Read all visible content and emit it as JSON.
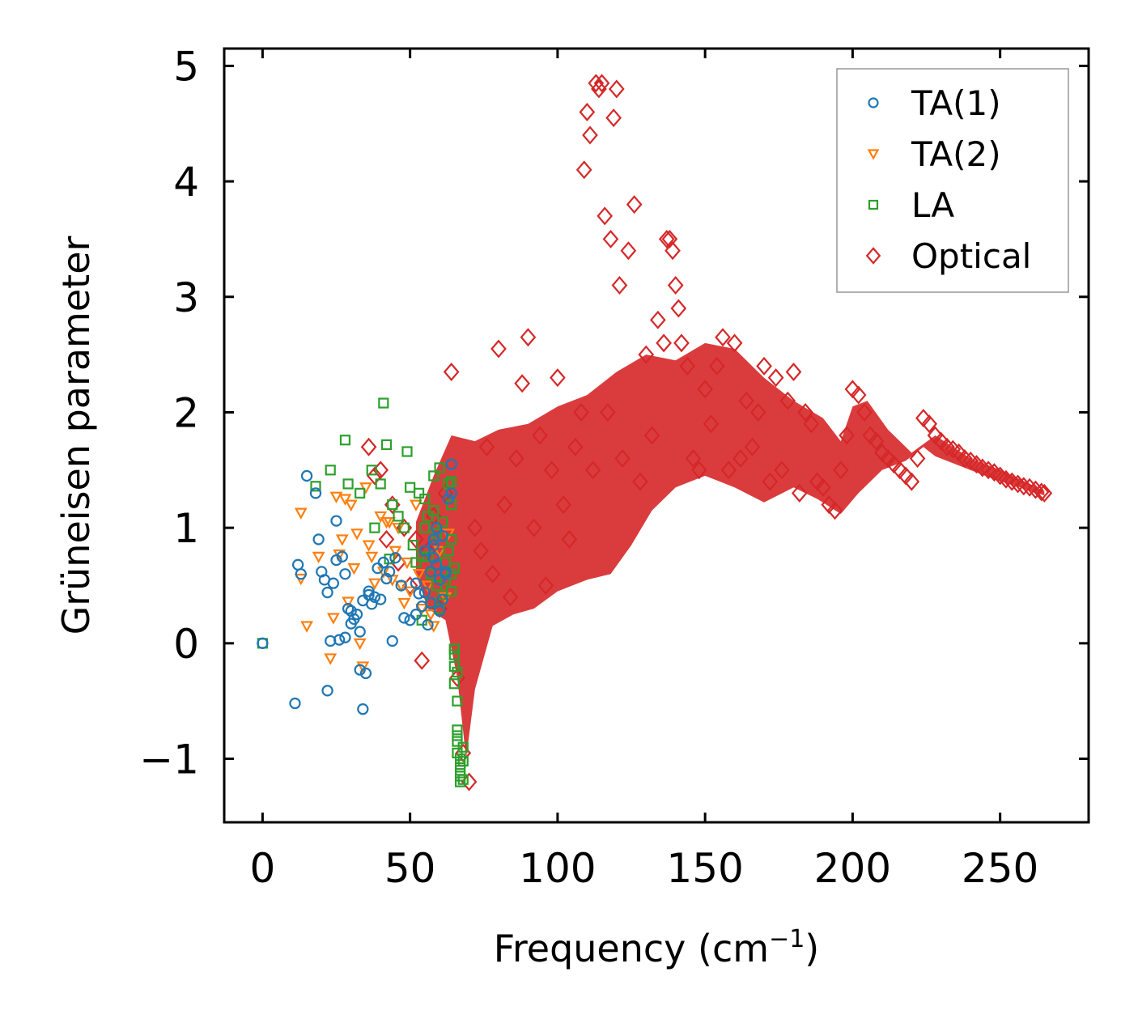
{
  "chart_data": {
    "type": "scatter",
    "xlabel": "Frequency (cm",
    "xlabel_sup": "−1",
    "xlabel_close": ")",
    "ylabel": "Grüneisen parameter",
    "xlim": [
      -13,
      280
    ],
    "ylim": [
      -1.55,
      5.15
    ],
    "xticks": [
      0,
      50,
      100,
      150,
      200,
      250
    ],
    "xtick_labels": [
      "0",
      "50",
      "100",
      "150",
      "200",
      "250"
    ],
    "yticks": [
      -1,
      0,
      1,
      2,
      3,
      4,
      5
    ],
    "ytick_labels": [
      "−1",
      "0",
      "1",
      "2",
      "3",
      "4",
      "5"
    ],
    "legend_position": "top-right",
    "series": [
      {
        "name": "TA(1)",
        "marker": "circle",
        "color": "#1f77b4",
        "x": [
          0,
          11,
          12,
          13,
          15,
          18,
          19,
          20,
          21,
          22,
          23,
          24,
          25,
          26,
          27,
          28,
          29,
          30,
          31,
          32,
          33,
          34,
          34,
          35,
          36,
          37,
          38,
          40,
          42,
          43,
          44,
          45,
          47,
          48,
          50,
          52,
          53,
          55,
          57,
          58,
          59,
          60,
          61,
          62,
          63,
          64,
          56,
          58,
          54,
          60,
          57,
          59,
          41,
          39,
          36,
          33,
          30,
          28,
          25,
          22,
          52,
          55,
          61,
          62,
          64,
          58
        ],
        "y": [
          0.0,
          -0.52,
          0.68,
          0.6,
          1.45,
          1.3,
          0.9,
          0.62,
          0.55,
          0.44,
          0.02,
          0.52,
          1.06,
          0.03,
          0.75,
          0.6,
          0.3,
          0.17,
          0.21,
          0.25,
          -0.23,
          0.37,
          -0.57,
          -0.26,
          0.42,
          0.34,
          0.4,
          0.38,
          0.56,
          0.62,
          0.02,
          0.74,
          0.5,
          0.22,
          0.2,
          0.52,
          0.43,
          0.8,
          0.62,
          0.74,
          1.0,
          0.55,
          0.38,
          0.6,
          1.25,
          1.55,
          0.16,
          0.9,
          0.32,
          0.28,
          0.35,
          0.68,
          0.7,
          0.65,
          0.45,
          0.1,
          0.28,
          0.05,
          0.72,
          -0.41,
          0.25,
          0.44,
          0.93,
          0.62,
          1.3,
          0.85
        ]
      },
      {
        "name": "TA(2)",
        "marker": "triangle-down",
        "color": "#ff7f0e",
        "x": [
          13,
          13,
          15,
          19,
          23,
          25,
          26,
          28,
          29,
          30,
          32,
          33,
          35,
          36,
          37,
          38,
          40,
          41,
          42,
          44,
          45,
          46,
          47,
          49,
          50,
          52,
          54,
          56,
          58,
          60,
          62,
          63,
          34,
          31,
          24,
          27,
          43,
          48,
          53,
          57
        ],
        "y": [
          1.13,
          0.56,
          0.15,
          0.75,
          -0.13,
          1.27,
          0.77,
          1.25,
          0.36,
          1.2,
          0.95,
          0.0,
          1.35,
          0.85,
          0.75,
          0.52,
          1.1,
          0.62,
          1.05,
          0.55,
          0.8,
          1.0,
          0.5,
          0.7,
          0.45,
          1.2,
          0.3,
          0.5,
          0.15,
          0.8,
          0.4,
          0.95,
          -0.2,
          0.65,
          0.22,
          0.9,
          1.05,
          0.35,
          0.6,
          0.25
        ]
      },
      {
        "name": "LA",
        "marker": "square",
        "color": "#2ca02c",
        "x": [
          0,
          18,
          23,
          28,
          29,
          33,
          37,
          38,
          40,
          41,
          42,
          43,
          44,
          46,
          48,
          49,
          50,
          51,
          52,
          53,
          54,
          55,
          56,
          57,
          58,
          59,
          60,
          61,
          62,
          63,
          64,
          64,
          64,
          65,
          65,
          65,
          65,
          66,
          66,
          66,
          66,
          67,
          67,
          67,
          67,
          68,
          68,
          68,
          64,
          65,
          66,
          63,
          62,
          61,
          60,
          59,
          58,
          57,
          56,
          55,
          54,
          66,
          67,
          65,
          64
        ],
        "y": [
          0.0,
          1.36,
          1.5,
          1.76,
          1.38,
          1.3,
          1.5,
          1.0,
          1.38,
          2.08,
          1.72,
          0.73,
          1.2,
          1.1,
          1.0,
          1.66,
          1.35,
          0.85,
          0.7,
          1.3,
          0.75,
          1.25,
          1.1,
          0.6,
          1.45,
          0.95,
          1.52,
          0.42,
          0.7,
          1.38,
          1.2,
          0.9,
          0.6,
          -0.05,
          -0.1,
          -0.2,
          -0.35,
          -0.5,
          -0.8,
          -0.85,
          -0.95,
          -1.0,
          -1.05,
          -1.1,
          -1.15,
          -1.18,
          -1.02,
          -0.9,
          1.4,
          0.65,
          -0.25,
          0.8,
          0.55,
          1.05,
          0.3,
          0.5,
          1.15,
          0.35,
          0.75,
          1.0,
          0.2,
          -0.75,
          -1.2,
          -0.05,
          0.45
        ]
      },
      {
        "name": "Optical",
        "marker": "diamond",
        "color": "#d62728",
        "x": [
          36,
          38,
          40,
          42,
          44,
          46,
          48,
          50,
          52,
          54,
          56,
          58,
          60,
          62,
          64,
          66,
          68,
          70,
          72,
          74,
          76,
          78,
          80,
          82,
          84,
          86,
          88,
          90,
          92,
          94,
          96,
          98,
          100,
          102,
          104,
          106,
          108,
          109,
          110,
          111,
          112,
          113,
          114,
          115,
          116,
          117,
          118,
          119,
          120,
          121,
          122,
          124,
          126,
          128,
          130,
          132,
          134,
          136,
          137,
          138,
          139,
          140,
          141,
          142,
          144,
          146,
          148,
          150,
          152,
          154,
          156,
          158,
          160,
          162,
          164,
          166,
          168,
          170,
          172,
          174,
          176,
          178,
          180,
          182,
          184,
          186,
          188,
          190,
          192,
          194,
          196,
          198,
          200,
          202,
          204,
          206,
          208,
          210,
          212,
          214,
          216,
          218,
          220,
          222,
          224,
          226,
          228,
          230,
          232,
          234,
          236,
          238,
          240,
          242,
          244,
          246,
          248,
          250,
          252,
          254,
          256,
          258,
          260,
          262,
          264,
          265
        ],
        "y": [
          1.7,
          1.45,
          1.5,
          0.9,
          1.2,
          0.7,
          1.0,
          0.5,
          0.9,
          -0.15,
          0.8,
          1.1,
          0.3,
          1.3,
          2.35,
          -0.3,
          -0.95,
          -1.2,
          1.0,
          0.8,
          1.7,
          0.6,
          2.55,
          1.2,
          0.4,
          1.6,
          2.25,
          2.65,
          1.0,
          1.8,
          0.5,
          1.5,
          2.3,
          1.2,
          0.9,
          1.7,
          2.0,
          4.1,
          4.6,
          4.4,
          1.5,
          4.85,
          4.8,
          4.85,
          3.7,
          2.0,
          3.5,
          4.55,
          4.8,
          3.1,
          1.6,
          3.4,
          3.8,
          1.4,
          2.5,
          1.8,
          2.8,
          2.6,
          3.5,
          3.5,
          3.4,
          3.1,
          2.9,
          2.6,
          2.4,
          1.6,
          1.5,
          2.2,
          1.9,
          2.4,
          2.65,
          1.5,
          2.6,
          1.6,
          2.1,
          1.7,
          2.0,
          2.4,
          1.4,
          2.3,
          1.5,
          2.1,
          2.35,
          1.3,
          2.0,
          1.9,
          1.4,
          1.35,
          1.2,
          1.15,
          1.5,
          1.8,
          2.2,
          2.15,
          2.0,
          1.8,
          1.75,
          1.65,
          1.6,
          1.55,
          1.5,
          1.45,
          1.4,
          1.6,
          1.95,
          1.9,
          1.8,
          1.75,
          1.7,
          1.68,
          1.65,
          1.6,
          1.58,
          1.55,
          1.52,
          1.5,
          1.48,
          1.45,
          1.42,
          1.4,
          1.38,
          1.36,
          1.35,
          1.33,
          1.31,
          1.3
        ]
      }
    ]
  },
  "colors": {
    "ta1": "#1f77b4",
    "ta2": "#ff7f0e",
    "la": "#2ca02c",
    "optical": "#d62728"
  }
}
